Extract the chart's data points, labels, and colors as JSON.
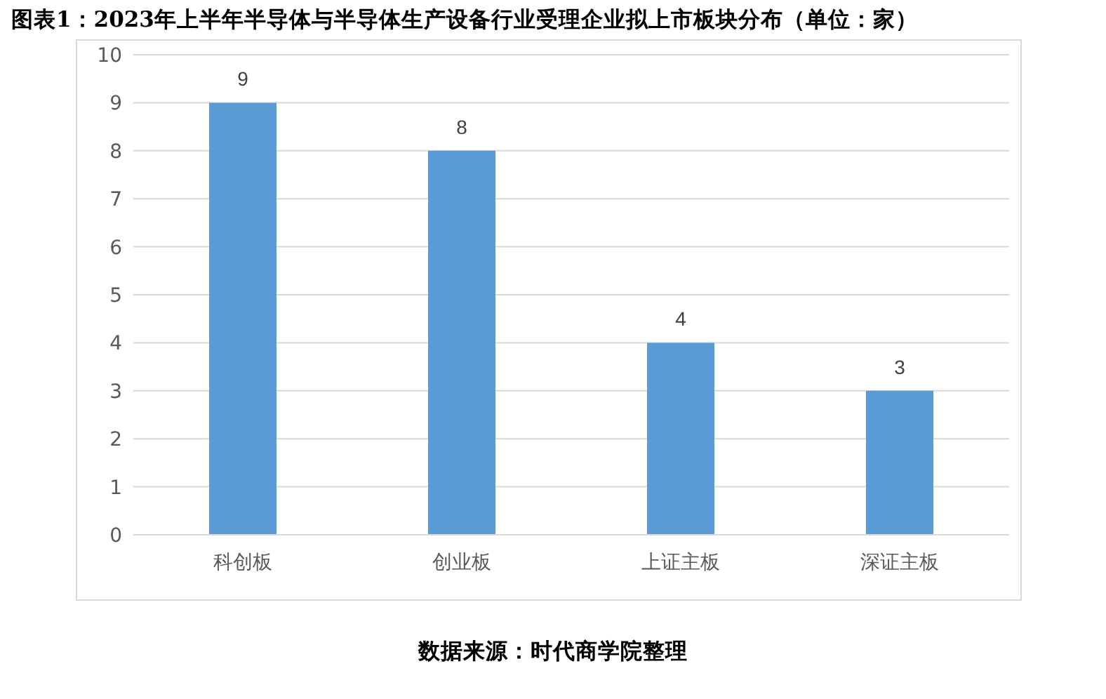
{
  "chart_data": {
    "type": "bar",
    "title": "图表1：2023年上半年半导体与半导体生产设备行业受理企业拟上市板块分布（单位：家）",
    "categories": [
      "科创板",
      "创业板",
      "上证主板",
      "深证主板"
    ],
    "values": [
      9,
      8,
      4,
      3
    ],
    "color": "#5b9bd5",
    "ylim": [
      0,
      10
    ],
    "yticks": [
      0,
      1,
      2,
      3,
      4,
      5,
      6,
      7,
      8,
      9,
      10
    ],
    "grid": "y",
    "data_labels": true,
    "annotations": [
      "数据来源：时代商学院整理"
    ]
  }
}
